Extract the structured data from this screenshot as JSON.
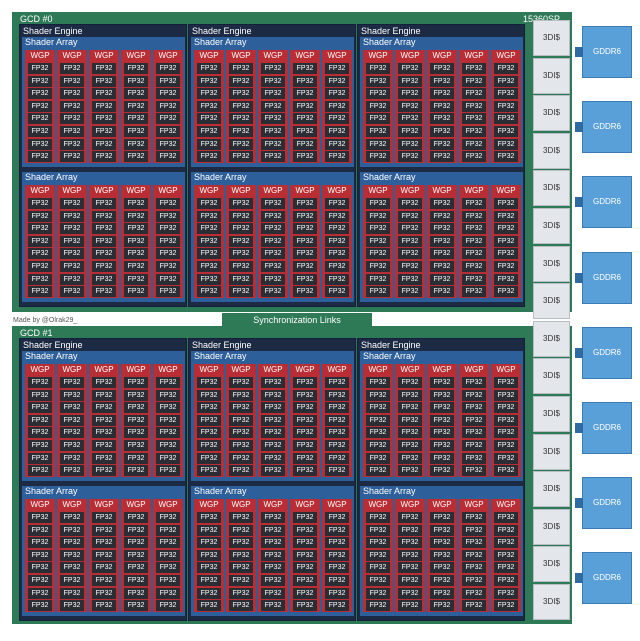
{
  "gcds": [
    {
      "label": "GCD #0",
      "sp": "15360SP"
    },
    {
      "label": "GCD #1",
      "sp": ""
    }
  ],
  "labels": {
    "shader_engine": "Shader Engine",
    "shader_array": "Shader Array",
    "wgp": "WGP",
    "fp32": "FP32",
    "cache": "3DI$",
    "memory": "GDDR6",
    "sync": "Synchronization Links",
    "credit": "Made by @Olrak29_"
  },
  "structure": {
    "shader_engines_per_gcd": 3,
    "shader_arrays_per_engine": 2,
    "wgps_per_array": 5,
    "fp32_per_wgp": 8,
    "cache_blocks": 16,
    "memory_modules": 8
  },
  "colors": {
    "gcd": "#2f7a56",
    "shader_engine": "#1d2a44",
    "shader_array": "#2d5f9a",
    "wgp": "#b82e34",
    "fp32": "#2a2d34",
    "cache": "#e3e6ea",
    "memory": "#5aa0d8"
  }
}
